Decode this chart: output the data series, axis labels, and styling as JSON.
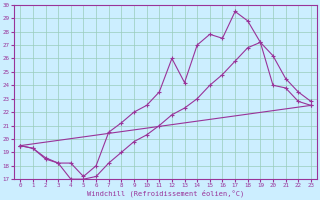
{
  "xlabel": "Windchill (Refroidissement éolien,°C)",
  "bg_color": "#cceeff",
  "grid_color": "#99ccbb",
  "line_color": "#993399",
  "xlim": [
    -0.5,
    23.5
  ],
  "ylim": [
    17,
    30
  ],
  "xticks": [
    0,
    1,
    2,
    3,
    4,
    5,
    6,
    7,
    8,
    9,
    10,
    11,
    12,
    13,
    14,
    15,
    16,
    17,
    18,
    19,
    20,
    21,
    22,
    23
  ],
  "yticks": [
    17,
    18,
    19,
    20,
    21,
    22,
    23,
    24,
    25,
    26,
    27,
    28,
    29,
    30
  ],
  "line1_x": [
    0,
    1,
    2,
    3,
    4,
    5,
    6,
    7,
    8,
    9,
    10,
    11,
    12,
    13,
    14,
    15,
    16,
    17,
    18,
    19,
    20,
    21,
    22,
    23
  ],
  "line1_y": [
    19.5,
    19.3,
    18.6,
    18.2,
    18.2,
    17.2,
    18.0,
    20.5,
    21.2,
    22.0,
    22.5,
    23.5,
    26.0,
    24.2,
    27.0,
    27.8,
    27.5,
    29.5,
    28.8,
    27.2,
    24.0,
    23.8,
    22.8,
    22.5
  ],
  "line2_x": [
    0,
    1,
    2,
    3,
    4,
    5,
    6,
    7,
    8,
    9,
    10,
    11,
    12,
    13,
    14,
    15,
    16,
    17,
    18,
    19,
    20,
    21,
    22,
    23
  ],
  "line2_y": [
    19.5,
    19.3,
    18.5,
    18.2,
    17.0,
    17.0,
    17.2,
    18.2,
    19.0,
    19.8,
    20.3,
    21.0,
    21.8,
    22.3,
    23.0,
    24.0,
    24.8,
    25.8,
    26.8,
    27.2,
    26.2,
    24.5,
    23.5,
    22.8
  ],
  "line3_x": [
    0,
    23
  ],
  "line3_y": [
    19.5,
    22.5
  ]
}
